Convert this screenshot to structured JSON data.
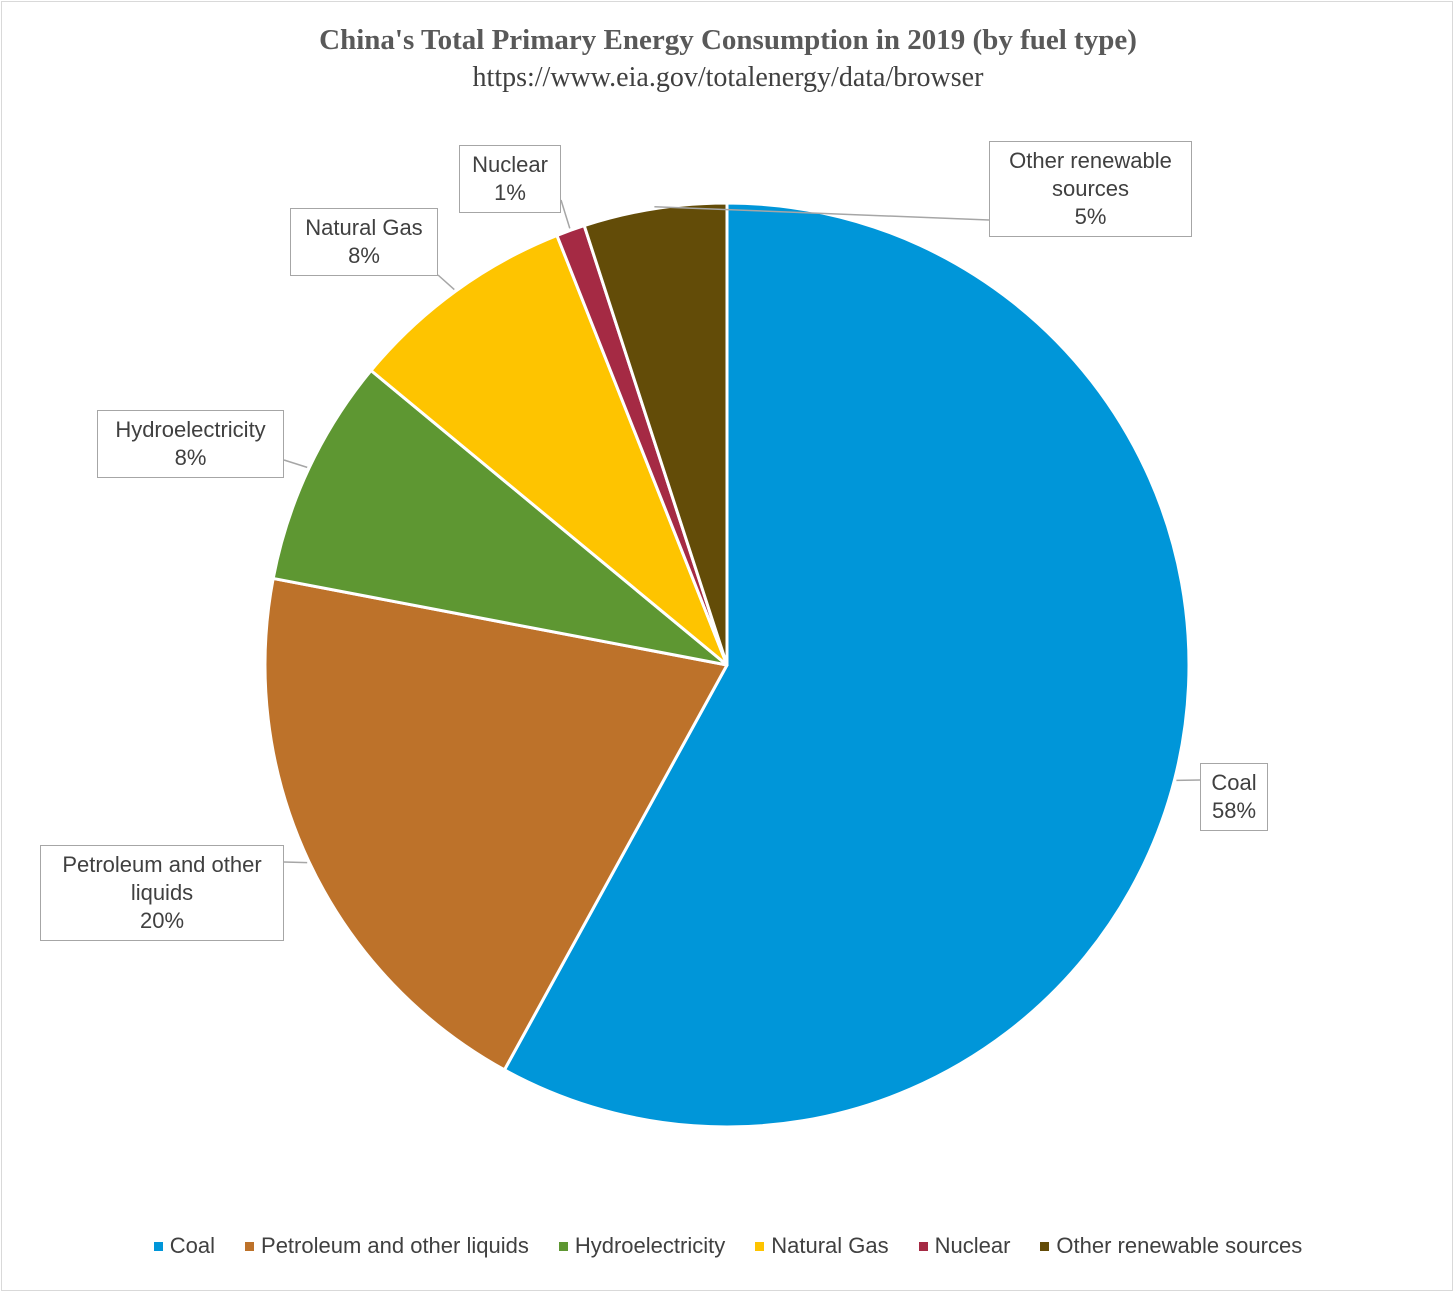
{
  "chart_data": {
    "type": "pie",
    "title": "China's Total Primary Energy Consumption in 2019 (by fuel type)",
    "subtitle": "https://www.eia.gov/totalenergy/data/browser",
    "legend_position": "bottom",
    "categories": [
      "Coal",
      "Petroleum and other liquids",
      "Hydroelectricity",
      "Natural Gas",
      "Nuclear",
      "Other renewable sources"
    ],
    "values": [
      58,
      20,
      8,
      8,
      1,
      5
    ],
    "labels": [
      "58%",
      "20%",
      "8%",
      "8%",
      "1%",
      "5%"
    ],
    "colors": [
      "#0096D9",
      "#BD722A",
      "#5E9732",
      "#FEC400",
      "#A52A44",
      "#634C08"
    ]
  }
}
